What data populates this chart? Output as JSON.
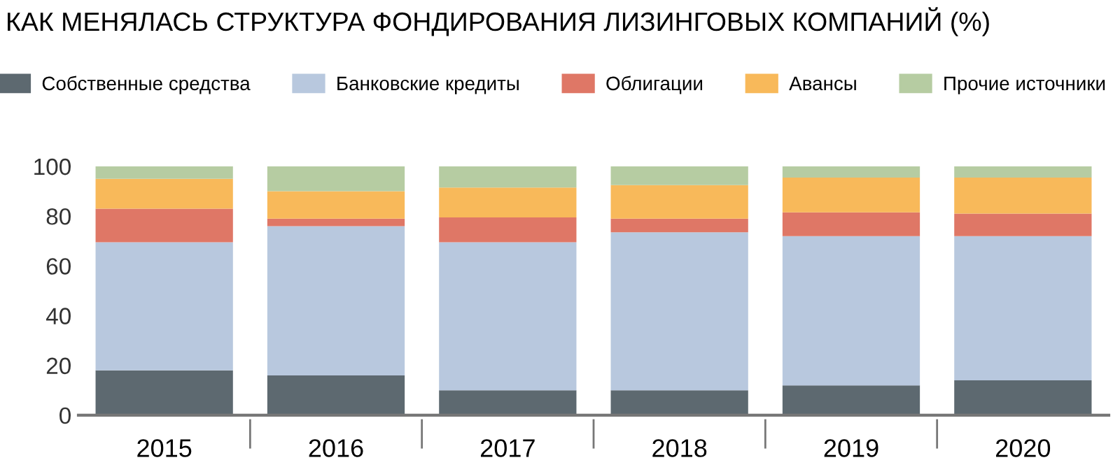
{
  "chart_data": {
    "type": "bar",
    "stacked": true,
    "title": "КАК МЕНЯЛАСЬ СТРУКТУРА ФОНДИРОВАНИЯ ЛИЗИНГОВЫХ КОМПАНИЙ (%)",
    "categories": [
      "2015",
      "2016",
      "2017",
      "2018",
      "2019",
      "2020"
    ],
    "series": [
      {
        "name": "Собственные средства",
        "color": "#5d6970",
        "values": [
          18,
          16,
          10,
          10,
          12,
          14
        ]
      },
      {
        "name": "Банковские кредиты",
        "color": "#b8c8de",
        "values": [
          51.5,
          60,
          59.5,
          63.5,
          60,
          58
        ]
      },
      {
        "name": "Облигации",
        "color": "#df7766",
        "values": [
          13.5,
          3,
          10,
          5.5,
          9.5,
          9
        ]
      },
      {
        "name": "Авансы",
        "color": "#f8b95a",
        "values": [
          12,
          11,
          12,
          13.5,
          14,
          14.5
        ]
      },
      {
        "name": "Прочие источники",
        "color": "#b6cca2",
        "values": [
          5,
          10,
          8.5,
          7.5,
          4.5,
          4.5
        ]
      }
    ],
    "ylim": [
      0,
      100
    ],
    "yticks": [
      0,
      20,
      40,
      60,
      80,
      100
    ],
    "grid": false,
    "legend": "top"
  }
}
